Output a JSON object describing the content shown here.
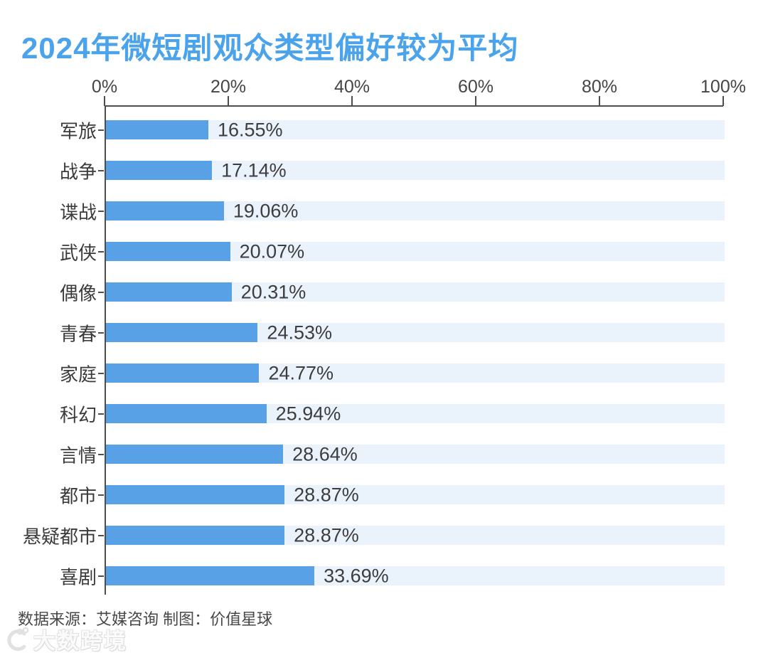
{
  "title": "2024年微短剧观众类型偏好较为平均",
  "chart_data": {
    "type": "bar",
    "orientation": "horizontal",
    "title": "2024年微短剧观众类型偏好较为平均",
    "categories": [
      "军旅",
      "战争",
      "谍战",
      "武侠",
      "偶像",
      "青春",
      "家庭",
      "科幻",
      "言情",
      "都市",
      "悬疑都市",
      "喜剧"
    ],
    "values": [
      16.55,
      17.14,
      19.06,
      20.07,
      20.31,
      24.53,
      24.77,
      25.94,
      28.64,
      28.87,
      28.87,
      33.69
    ],
    "value_labels": [
      "16.55%",
      "17.14%",
      "19.06%",
      "20.07%",
      "20.31%",
      "24.53%",
      "24.77%",
      "25.94%",
      "28.64%",
      "28.87%",
      "28.87%",
      "33.69%"
    ],
    "x_ticks": [
      "0%",
      "20%",
      "40%",
      "60%",
      "80%",
      "100%"
    ],
    "xlim": [
      0,
      100
    ],
    "xlabel": "",
    "ylabel": "",
    "grid": false,
    "legend": null,
    "colors": {
      "bar": "#58A1E6",
      "track": "#EAF2FB",
      "title": "#4AA3EB",
      "tick_text": "#454545",
      "axis_line": "#4d4d4d",
      "value_text": "#3d3d3d"
    }
  },
  "footer": {
    "source": "数据来源：艾媒咨询 制图：价值星球"
  },
  "watermark": {
    "text": "大数跨境"
  }
}
